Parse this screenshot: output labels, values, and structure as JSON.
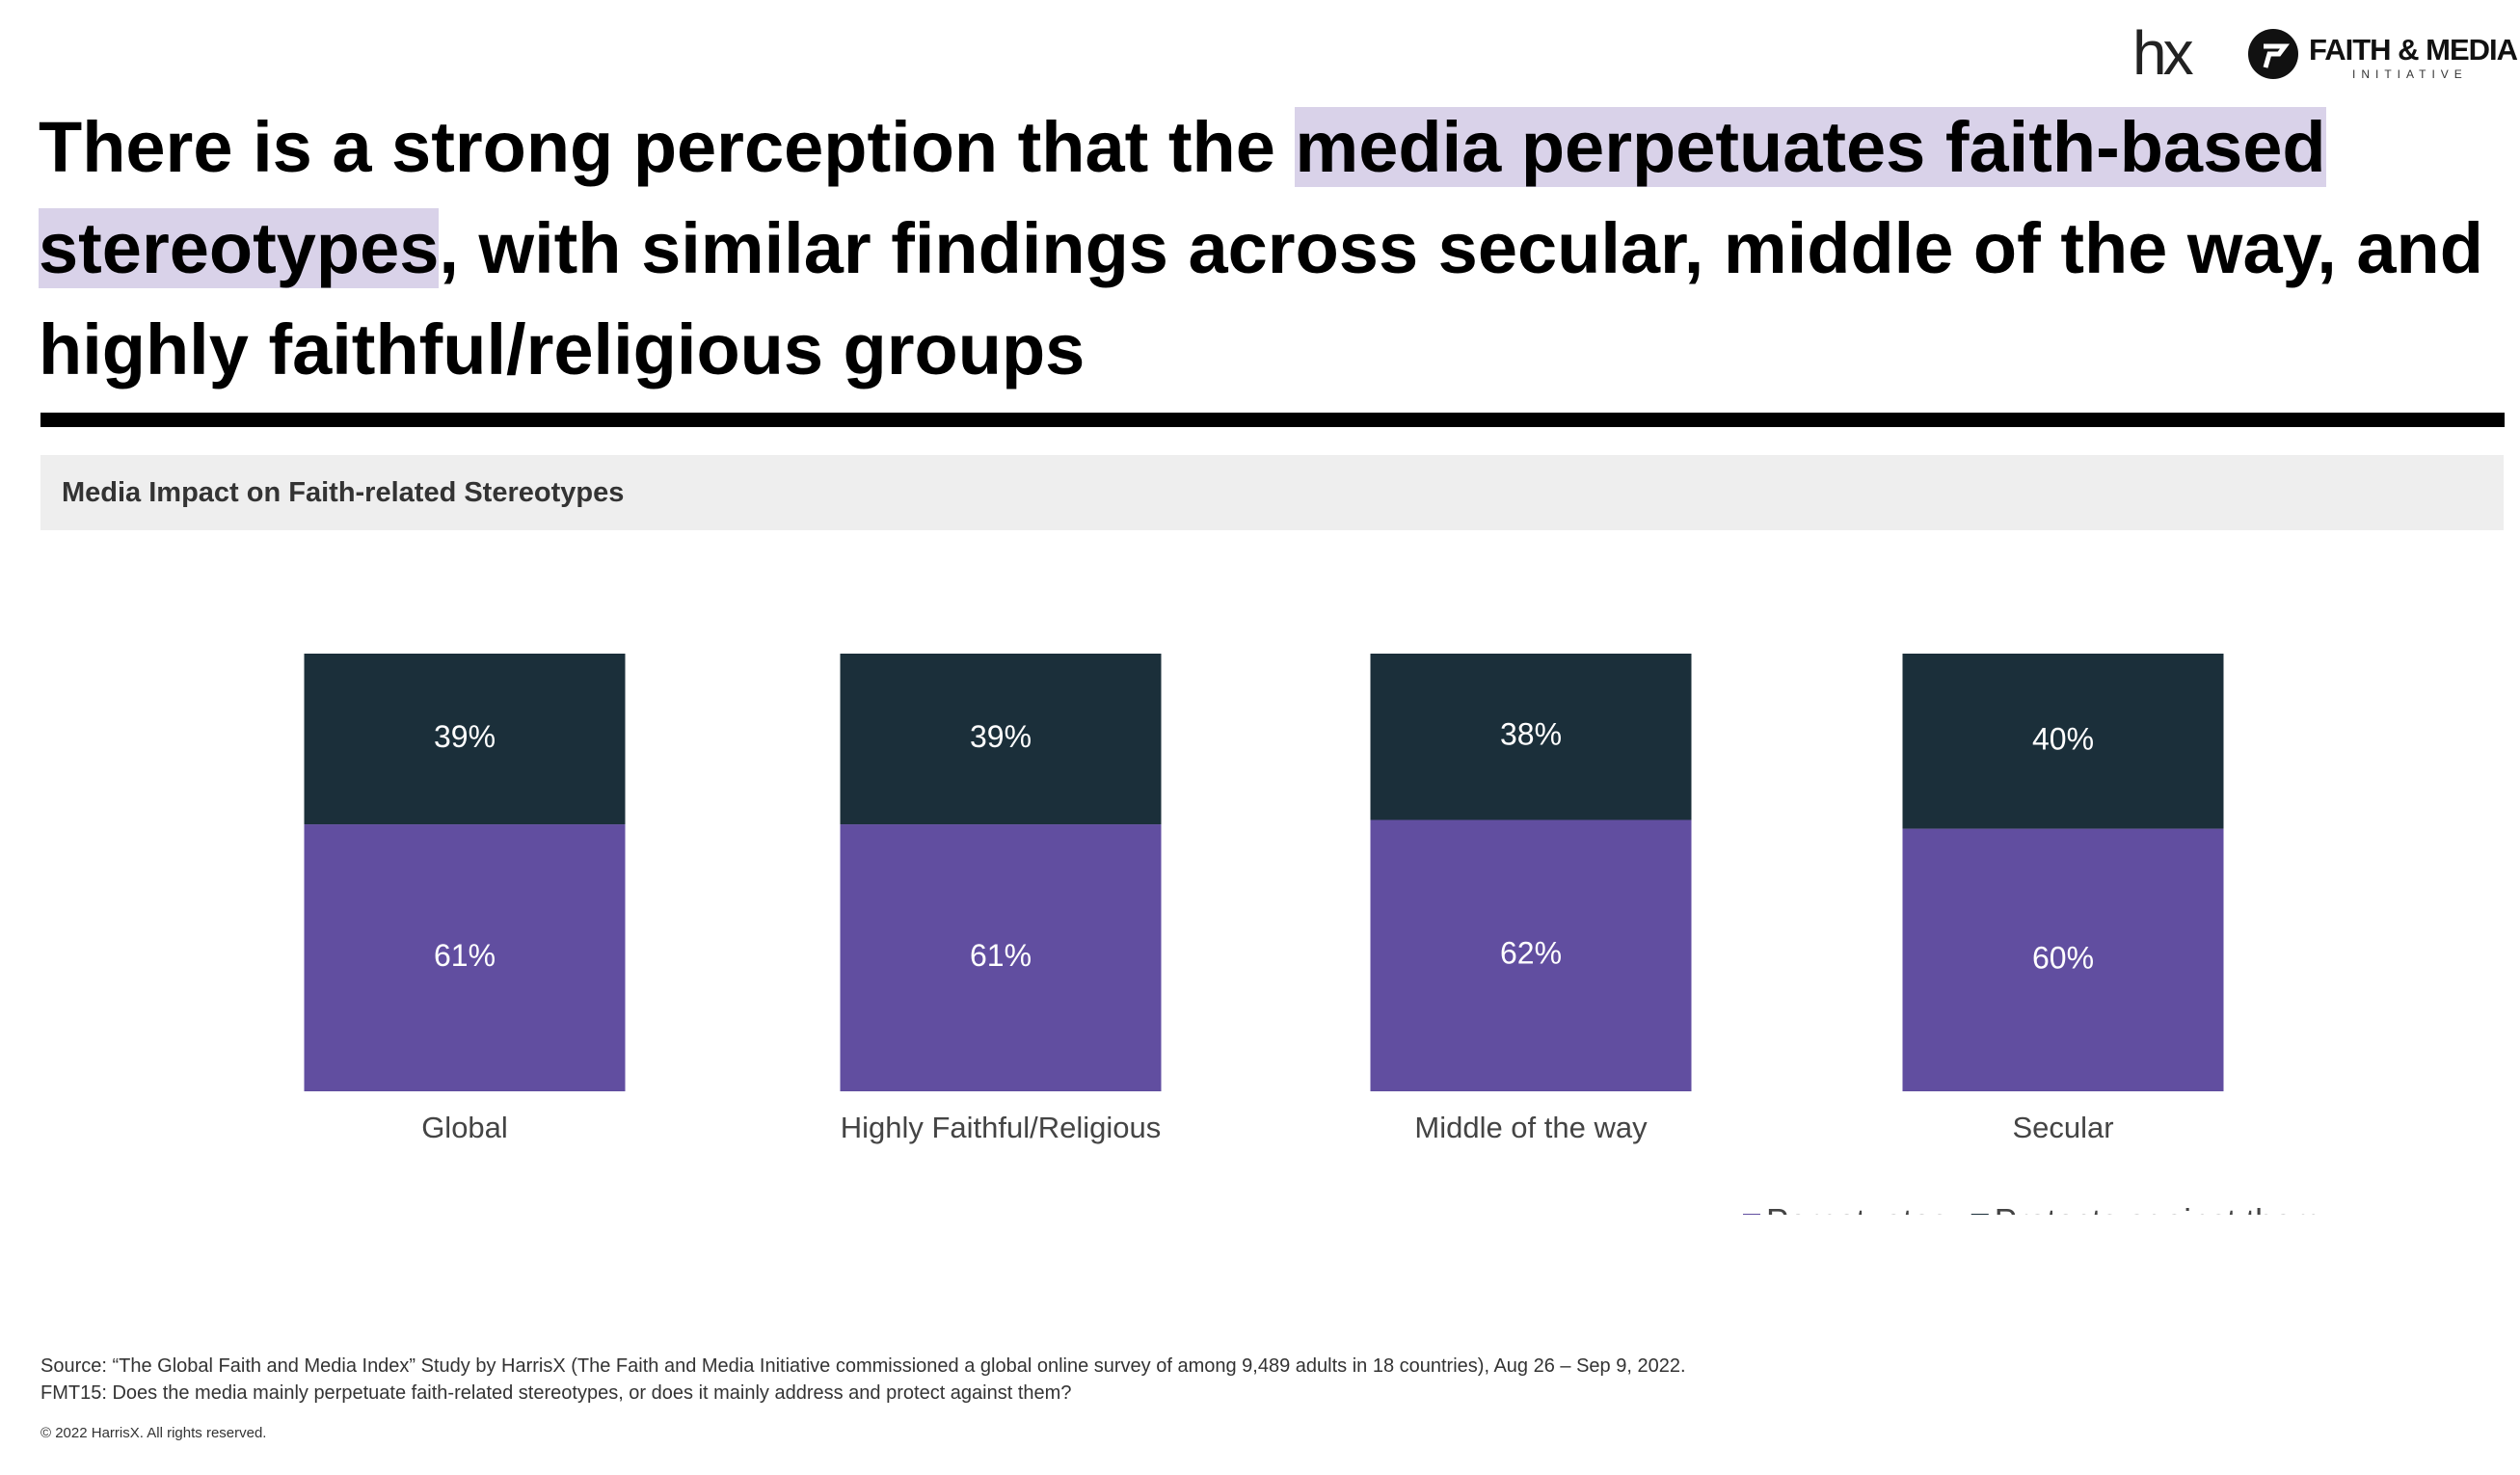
{
  "logos": {
    "hx": "hx",
    "brand": "FAITH & MEDIA",
    "brand_sub": "INITIATIVE"
  },
  "title_parts": [
    "There is a strong perception that the ",
    "media perpetuates faith-based stereotypes",
    ", with similar findings across secular, middle of the way, and highly faithful/religious groups"
  ],
  "chart_data": {
    "type": "stacked_bar",
    "title": "Media Impact on Faith-related Stereotypes",
    "categories": [
      "Global",
      "Highly Faithful/Religious",
      "Middle of the way",
      "Secular"
    ],
    "series": [
      {
        "name": "Perpetuates",
        "color": "#614ea0",
        "values": [
          61,
          61,
          62,
          60
        ],
        "value_labels": [
          "61%",
          "61%",
          "62%",
          "60%"
        ]
      },
      {
        "name": "Protects against them",
        "color": "#1b2f3a",
        "values": [
          39,
          39,
          38,
          40
        ],
        "value_labels": [
          "39%",
          "39%",
          "38%",
          "40%"
        ]
      }
    ],
    "legend": "bottom-right"
  },
  "footer": {
    "source": "Source: “The Global Faith and Media Index” Study by HarrisX (The Faith and Media Initiative commissioned a global online survey of among 9,489 adults in 18 countries), Aug 26 – Sep 9, 2022.",
    "question": "FMT15: Does the media mainly perpetuate faith-related stereotypes, or does it mainly address and protect against them?",
    "copyright": "© 2022 HarrisX. All rights reserved."
  }
}
